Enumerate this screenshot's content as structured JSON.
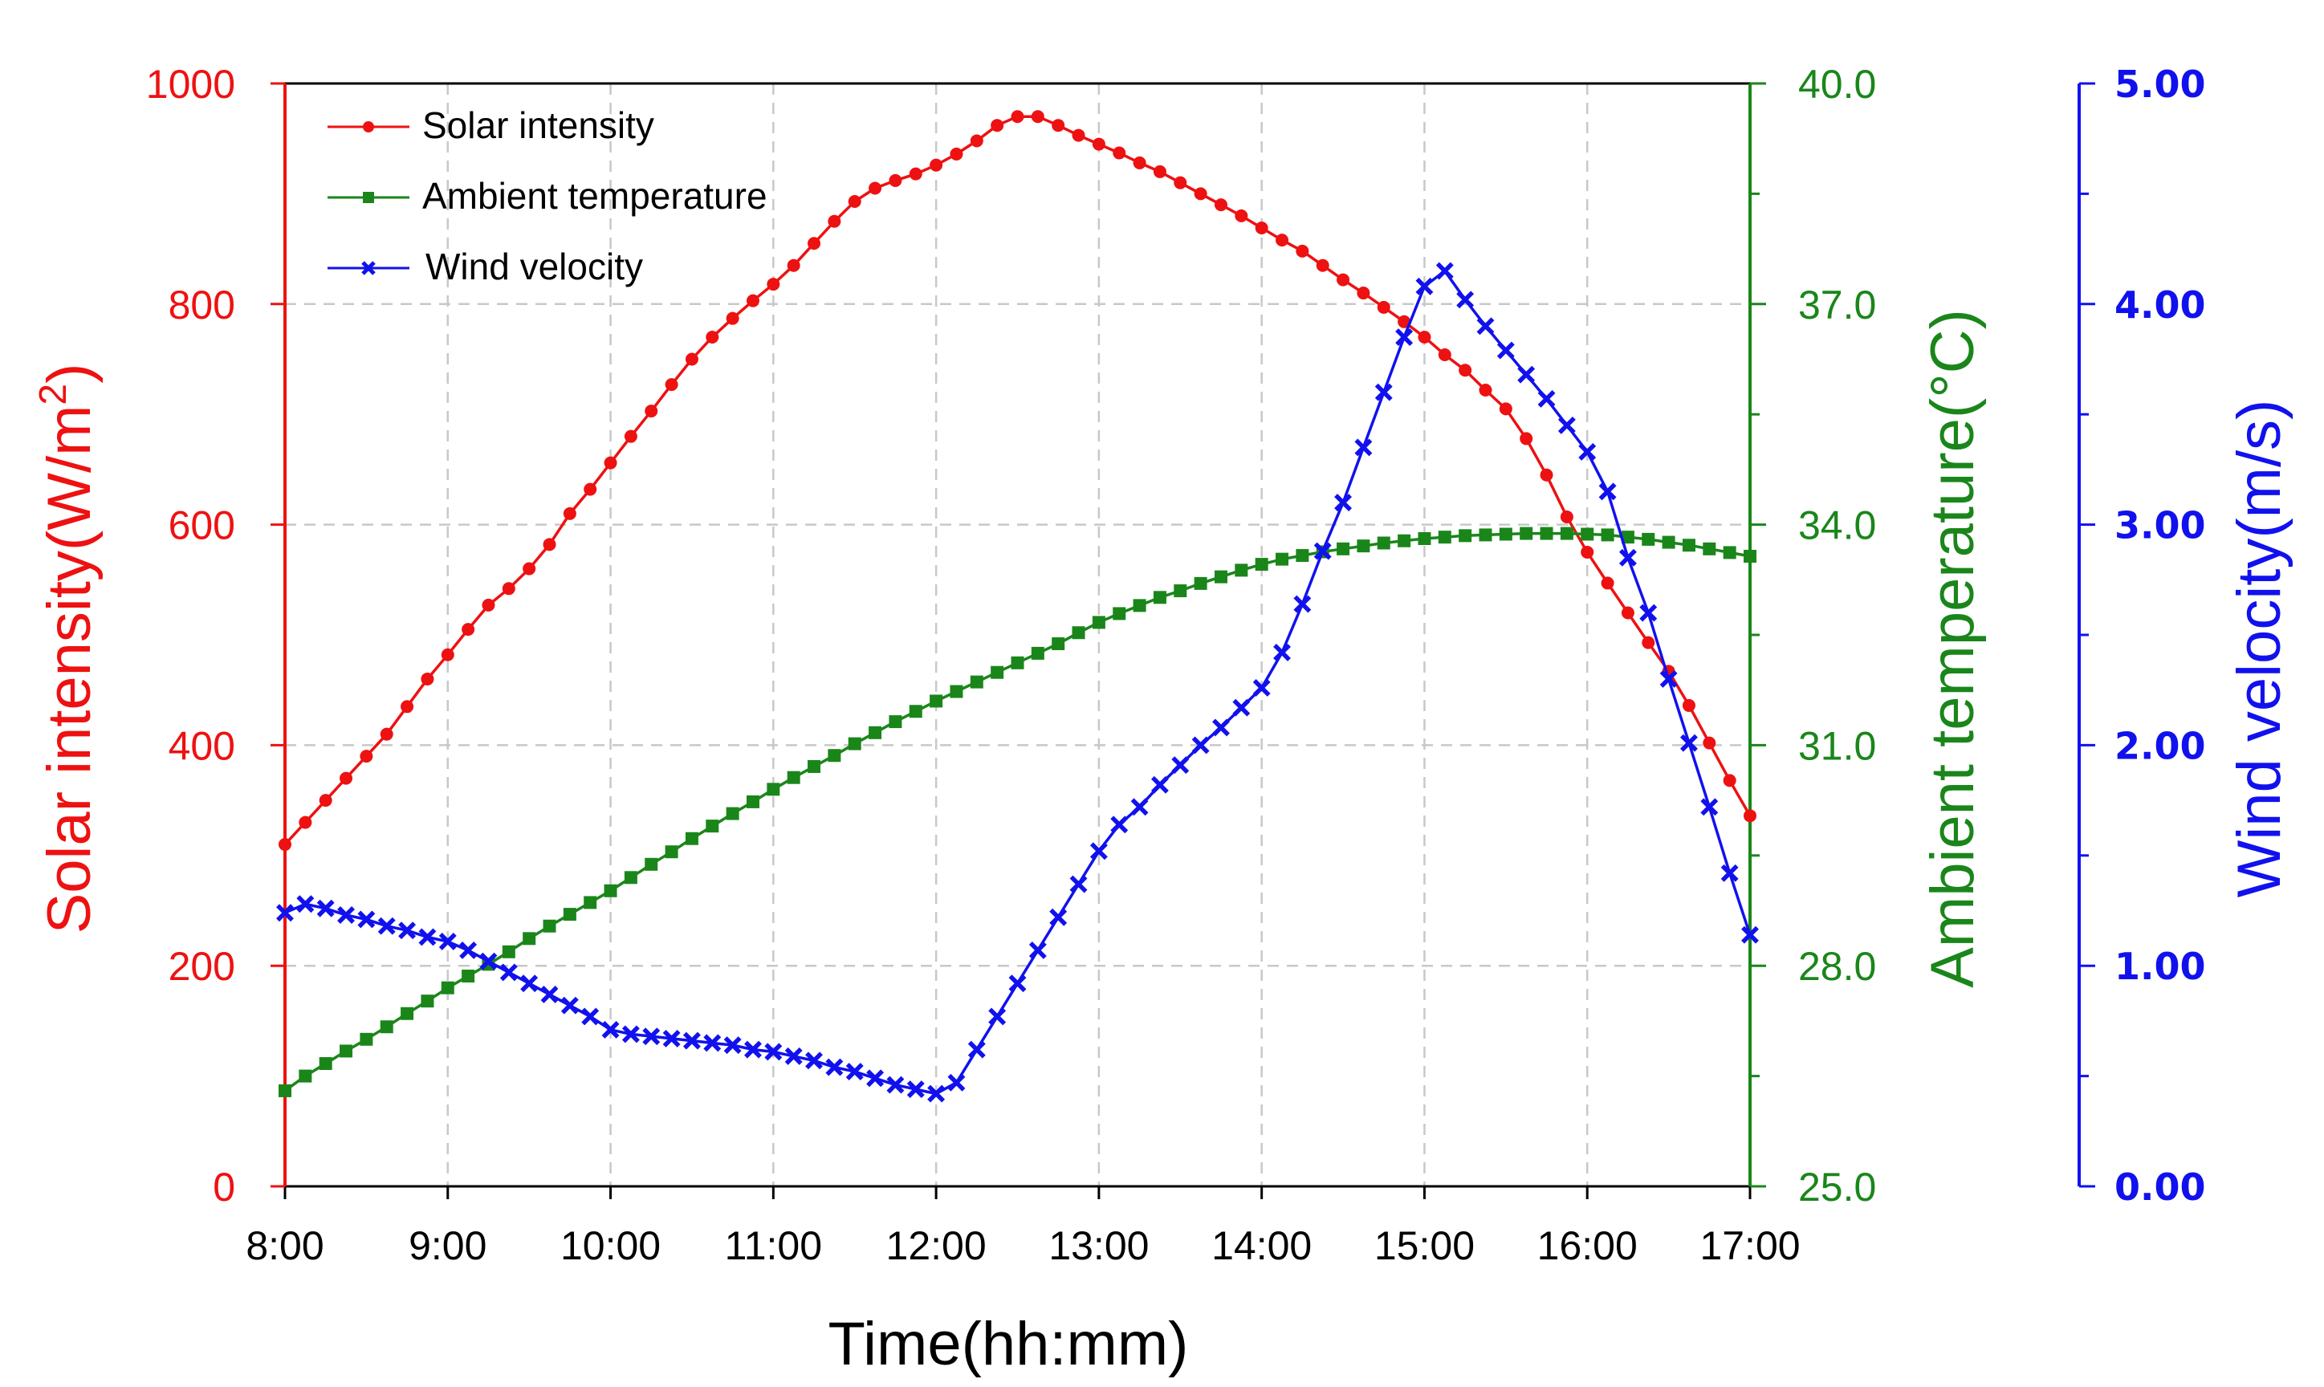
{
  "chart_data": {
    "type": "line",
    "title": "",
    "xlabel": "Time(hh:mm)",
    "x_ticks": [
      "8:00",
      "9:00",
      "10:00",
      "11:00",
      "12:00",
      "13:00",
      "14:00",
      "15:00",
      "16:00",
      "17:00"
    ],
    "xlim": [
      8,
      17
    ],
    "grid": true,
    "legend_placement": "top-left",
    "axes": {
      "left": {
        "label_prefix": "Solar intensity(W/m",
        "label_sup": "2",
        "label_suffix": ")",
        "range": [
          0,
          1000
        ],
        "ticks": [
          "0",
          "200",
          "400",
          "600",
          "800",
          "1000"
        ],
        "color": "#ee1111"
      },
      "right1": {
        "label": "Ambient temperature(°C)",
        "range": [
          25,
          40
        ],
        "ticks": [
          "25.0",
          "28.0",
          "31.0",
          "34.0",
          "37.0",
          "40.0"
        ],
        "color": "#1a861a"
      },
      "right2": {
        "label": "Wind velocity(m/s)",
        "range": [
          0,
          5
        ],
        "ticks": [
          "0.00",
          "1.00",
          "2.00",
          "3.00",
          "4.00",
          "5.00"
        ],
        "color": "#1111ee"
      }
    },
    "series": [
      {
        "name": "Solar intensity",
        "axis": "left",
        "marker": "circle",
        "color": "#ee1111",
        "x": [
          8.0,
          8.125,
          8.25,
          8.375,
          8.5,
          8.625,
          8.75,
          8.875,
          9.0,
          9.125,
          9.25,
          9.375,
          9.5,
          9.625,
          9.75,
          9.875,
          10.0,
          10.125,
          10.25,
          10.375,
          10.5,
          10.625,
          10.75,
          10.875,
          11.0,
          11.125,
          11.25,
          11.375,
          11.5,
          11.625,
          11.75,
          11.875,
          12.0,
          12.125,
          12.25,
          12.375,
          12.5,
          12.625,
          12.75,
          12.875,
          13.0,
          13.125,
          13.25,
          13.375,
          13.5,
          13.625,
          13.75,
          13.875,
          14.0,
          14.125,
          14.25,
          14.375,
          14.5,
          14.625,
          14.75,
          14.875,
          15.0,
          15.125,
          15.25,
          15.375,
          15.5,
          15.625,
          15.75,
          15.875,
          16.0,
          16.125,
          16.25,
          16.375,
          16.5,
          16.625,
          16.75,
          16.875,
          17.0
        ],
        "values": [
          310,
          330,
          350,
          370,
          390,
          410,
          435,
          460,
          482,
          505,
          527,
          542,
          560,
          582,
          610,
          632,
          656,
          680,
          703,
          727,
          750,
          770,
          787,
          803,
          818,
          835,
          855,
          875,
          893,
          905,
          912,
          918,
          926,
          936,
          948,
          962,
          970,
          970,
          962,
          953,
          945,
          937,
          928,
          920,
          910,
          900,
          890,
          880,
          869,
          858,
          848,
          835,
          822,
          810,
          797,
          784,
          770,
          754,
          740,
          722,
          705,
          678,
          645,
          607,
          575,
          547,
          520,
          493,
          467,
          436,
          402,
          368,
          336
        ]
      },
      {
        "name": "Ambient temperature",
        "axis": "right1",
        "marker": "square",
        "color": "#1a861a",
        "x": [
          8.0,
          8.125,
          8.25,
          8.375,
          8.5,
          8.625,
          8.75,
          8.875,
          9.0,
          9.125,
          9.25,
          9.375,
          9.5,
          9.625,
          9.75,
          9.875,
          10.0,
          10.125,
          10.25,
          10.375,
          10.5,
          10.625,
          10.75,
          10.875,
          11.0,
          11.125,
          11.25,
          11.375,
          11.5,
          11.625,
          11.75,
          11.875,
          12.0,
          12.125,
          12.25,
          12.375,
          12.5,
          12.625,
          12.75,
          12.875,
          13.0,
          13.125,
          13.25,
          13.375,
          13.5,
          13.625,
          13.75,
          13.875,
          14.0,
          14.125,
          14.25,
          14.375,
          14.5,
          14.625,
          14.75,
          14.875,
          15.0,
          15.125,
          15.25,
          15.375,
          15.5,
          15.625,
          15.75,
          15.875,
          16.0,
          16.125,
          16.25,
          16.375,
          16.5,
          16.625,
          16.75,
          16.875,
          17.0
        ],
        "values": [
          26.3,
          26.5,
          26.67,
          26.84,
          27.0,
          27.17,
          27.35,
          27.52,
          27.7,
          27.86,
          28.02,
          28.19,
          28.37,
          28.54,
          28.7,
          28.86,
          29.02,
          29.2,
          29.38,
          29.55,
          29.73,
          29.9,
          30.07,
          30.23,
          30.4,
          30.56,
          30.71,
          30.86,
          31.02,
          31.17,
          31.32,
          31.46,
          31.6,
          31.73,
          31.86,
          31.99,
          32.12,
          32.25,
          32.38,
          32.53,
          32.67,
          32.79,
          32.9,
          33.01,
          33.1,
          33.2,
          33.29,
          33.38,
          33.46,
          33.53,
          33.58,
          33.63,
          33.67,
          33.71,
          33.75,
          33.78,
          33.81,
          33.83,
          33.85,
          33.86,
          33.87,
          33.88,
          33.88,
          33.88,
          33.87,
          33.86,
          33.83,
          33.8,
          33.76,
          33.72,
          33.67,
          33.62,
          33.57
        ]
      },
      {
        "name": "Wind velocity",
        "axis": "right2",
        "marker": "x",
        "color": "#1111ee",
        "x": [
          8.0,
          8.125,
          8.25,
          8.375,
          8.5,
          8.625,
          8.75,
          8.875,
          9.0,
          9.125,
          9.25,
          9.375,
          9.5,
          9.625,
          9.75,
          9.875,
          10.0,
          10.125,
          10.25,
          10.375,
          10.5,
          10.625,
          10.75,
          10.875,
          11.0,
          11.125,
          11.25,
          11.375,
          11.5,
          11.625,
          11.75,
          11.875,
          12.0,
          12.125,
          12.25,
          12.375,
          12.5,
          12.625,
          12.75,
          12.875,
          13.0,
          13.125,
          13.25,
          13.375,
          13.5,
          13.625,
          13.75,
          13.875,
          14.0,
          14.125,
          14.25,
          14.375,
          14.5,
          14.625,
          14.75,
          14.875,
          15.0,
          15.125,
          15.25,
          15.375,
          15.5,
          15.625,
          15.75,
          15.875,
          16.0,
          16.125,
          16.25,
          16.375,
          16.5,
          16.625,
          16.75,
          16.875,
          17.0
        ],
        "values": [
          1.24,
          1.28,
          1.26,
          1.23,
          1.21,
          1.18,
          1.16,
          1.13,
          1.11,
          1.07,
          1.02,
          0.97,
          0.92,
          0.87,
          0.82,
          0.77,
          0.71,
          0.69,
          0.68,
          0.67,
          0.66,
          0.65,
          0.64,
          0.62,
          0.61,
          0.59,
          0.57,
          0.54,
          0.52,
          0.49,
          0.46,
          0.44,
          0.42,
          0.47,
          0.62,
          0.77,
          0.92,
          1.07,
          1.22,
          1.37,
          1.52,
          1.64,
          1.72,
          1.82,
          1.91,
          2.0,
          2.08,
          2.17,
          2.26,
          2.42,
          2.64,
          2.88,
          3.1,
          3.35,
          3.6,
          3.85,
          4.08,
          4.15,
          4.02,
          3.9,
          3.79,
          3.68,
          3.57,
          3.45,
          3.33,
          3.15,
          2.85,
          2.6,
          2.3,
          2.01,
          1.72,
          1.42,
          1.14
        ]
      }
    ]
  }
}
